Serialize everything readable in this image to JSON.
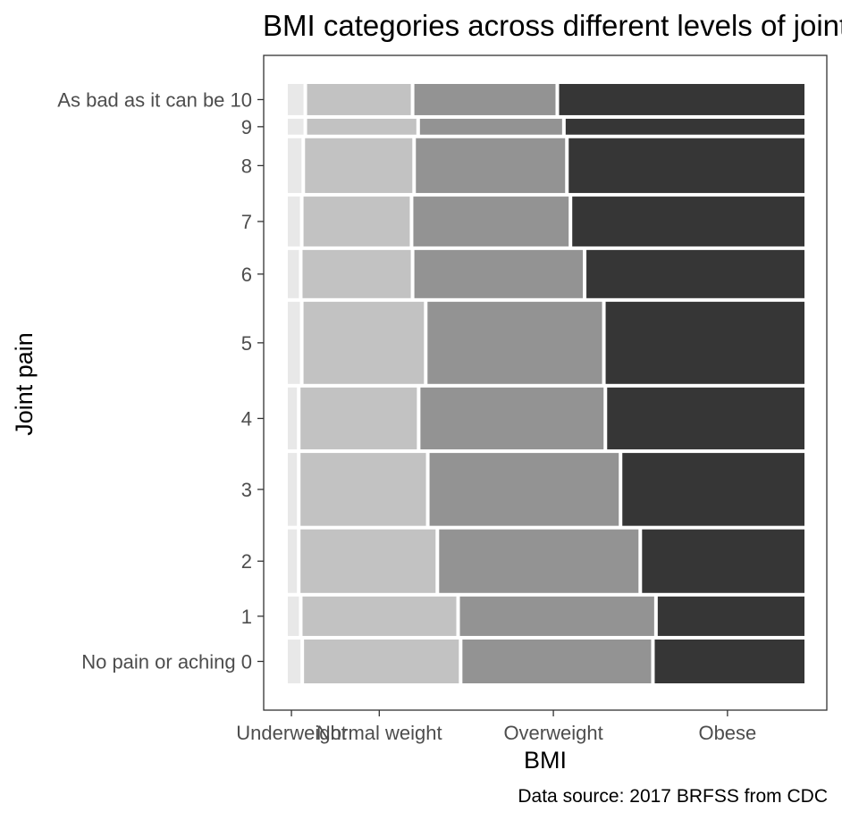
{
  "chart_data": {
    "type": "mosaic",
    "title": "BMI categories across different levels of joint pain",
    "xlabel": "BMI",
    "ylabel": "Joint pain",
    "caption": "Data source: 2017 BRFSS from CDC",
    "x_categories": [
      "Underweight",
      "Normal weight",
      "Overweight",
      "Obese"
    ],
    "fill_colors": [
      "#e8e8e8",
      "#c2c2c2",
      "#939393",
      "#363636"
    ],
    "grid": false,
    "legend": "none",
    "rows": [
      {
        "label": "No pain or aching 0",
        "row_share": 0.08,
        "proportions": [
          0.025,
          0.306,
          0.373,
          0.296
        ]
      },
      {
        "label": "1",
        "row_share": 0.072,
        "proportions": [
          0.022,
          0.304,
          0.384,
          0.29
        ]
      },
      {
        "label": "2",
        "row_share": 0.116,
        "proportions": [
          0.018,
          0.267,
          0.394,
          0.321
        ]
      },
      {
        "label": "3",
        "row_share": 0.133,
        "proportions": [
          0.018,
          0.248,
          0.374,
          0.36
        ]
      },
      {
        "label": "4",
        "row_share": 0.113,
        "proportions": [
          0.018,
          0.23,
          0.362,
          0.39
        ]
      },
      {
        "label": "5",
        "row_share": 0.15,
        "proportions": [
          0.024,
          0.238,
          0.345,
          0.393
        ]
      },
      {
        "label": "6",
        "row_share": 0.088,
        "proportions": [
          0.022,
          0.214,
          0.333,
          0.431
        ]
      },
      {
        "label": "7",
        "row_share": 0.091,
        "proportions": [
          0.024,
          0.21,
          0.307,
          0.459
        ]
      },
      {
        "label": "8",
        "row_share": 0.1,
        "proportions": [
          0.027,
          0.212,
          0.295,
          0.466
        ]
      },
      {
        "label": "9",
        "row_share": 0.029,
        "proportions": [
          0.031,
          0.216,
          0.281,
          0.472
        ]
      },
      {
        "label": "As bad as it can be 10",
        "row_share": 0.057,
        "proportions": [
          0.031,
          0.205,
          0.279,
          0.485
        ]
      }
    ],
    "x_tick_proportions": [
      0.007,
      0.177,
      0.514,
      0.851
    ]
  }
}
